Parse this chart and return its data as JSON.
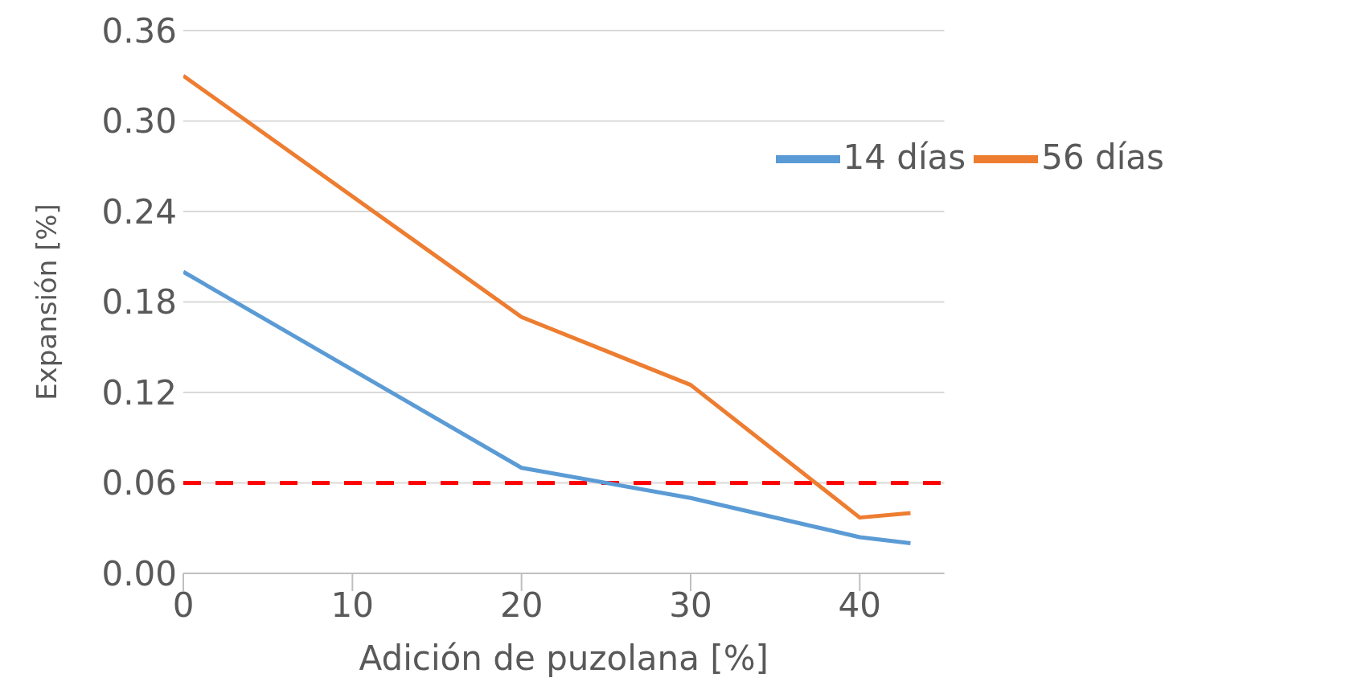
{
  "chart_data": {
    "type": "line",
    "xlabel": "Adición de puzolana [%]",
    "ylabel": "Expansión [%]",
    "x": [
      0,
      20,
      30,
      40,
      43
    ],
    "series": [
      {
        "name": "14 días",
        "color": "#5b9bd5",
        "values": [
          0.2,
          0.07,
          0.05,
          0.024,
          0.02
        ]
      },
      {
        "name": "56 días",
        "color": "#ed7d31",
        "values": [
          0.33,
          0.17,
          0.125,
          0.037,
          0.04
        ]
      }
    ],
    "xlim": [
      0,
      45
    ],
    "xticks": [
      0,
      10,
      20,
      30,
      40
    ],
    "ylim": [
      0,
      0.36
    ],
    "yticks": [
      {
        "value": 0,
        "label": "0.00"
      },
      0.06,
      0.12,
      0.18,
      0.24,
      {
        "value": 0.3,
        "label": "0.30"
      },
      0.36
    ],
    "ref_lines": [
      {
        "axis": "y",
        "value": 0.06,
        "color": "#ff0000",
        "line_style": "dashed"
      }
    ],
    "grid": "y",
    "legend": "top right",
    "marker": "none",
    "line_style": "solid"
  }
}
